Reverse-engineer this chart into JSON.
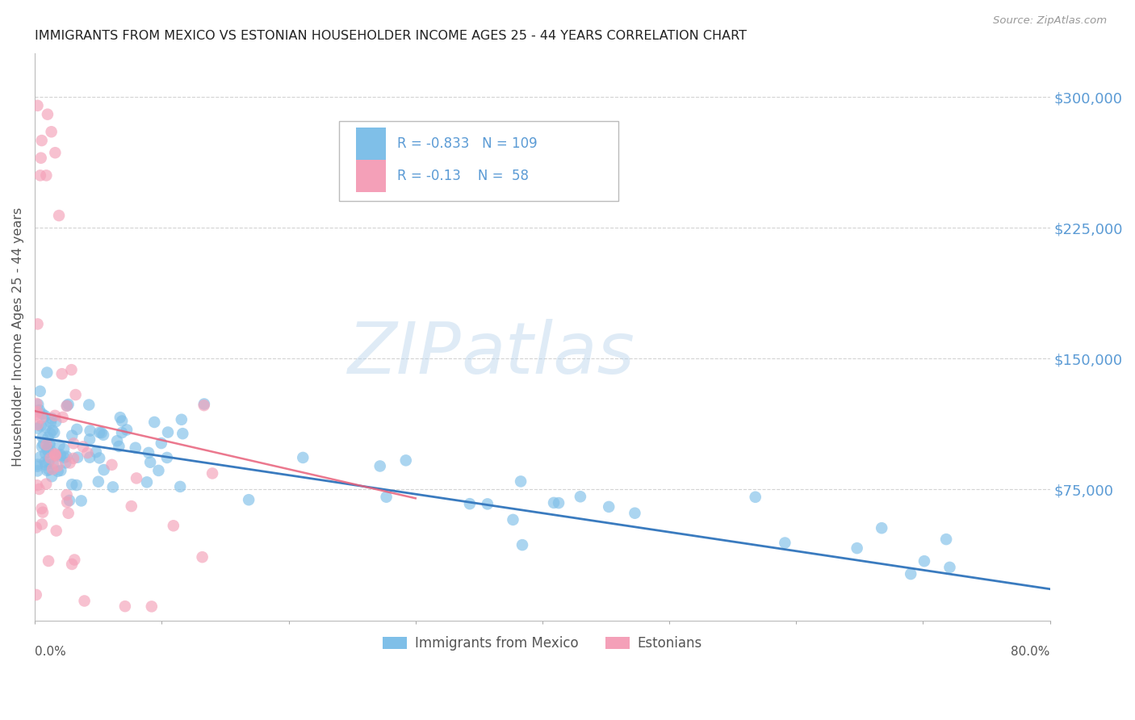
{
  "title": "IMMIGRANTS FROM MEXICO VS ESTONIAN HOUSEHOLDER INCOME AGES 25 - 44 YEARS CORRELATION CHART",
  "source": "Source: ZipAtlas.com",
  "ylabel": "Householder Income Ages 25 - 44 years",
  "xlim": [
    0.0,
    0.8
  ],
  "ylim": [
    0,
    325000
  ],
  "blue_R": -0.833,
  "blue_N": 109,
  "pink_R": -0.13,
  "pink_N": 58,
  "legend_label_blue": "Immigrants from Mexico",
  "legend_label_pink": "Estonians",
  "watermark_zip": "ZIP",
  "watermark_atlas": "atlas",
  "background_color": "#ffffff",
  "blue_color": "#7fbfe8",
  "pink_color": "#f4a0b8",
  "trend_blue": "#3a7bbf",
  "trend_pink": "#e8607a",
  "grid_color": "#c8c8c8",
  "title_color": "#222222",
  "ylabel_color": "#555555",
  "ytick_color": "#5b9bd5",
  "source_color": "#999999",
  "ytick_values": [
    75000,
    150000,
    225000,
    300000
  ],
  "xtick_values": [
    0.0,
    0.1,
    0.2,
    0.3,
    0.4,
    0.5,
    0.6,
    0.7,
    0.8
  ]
}
